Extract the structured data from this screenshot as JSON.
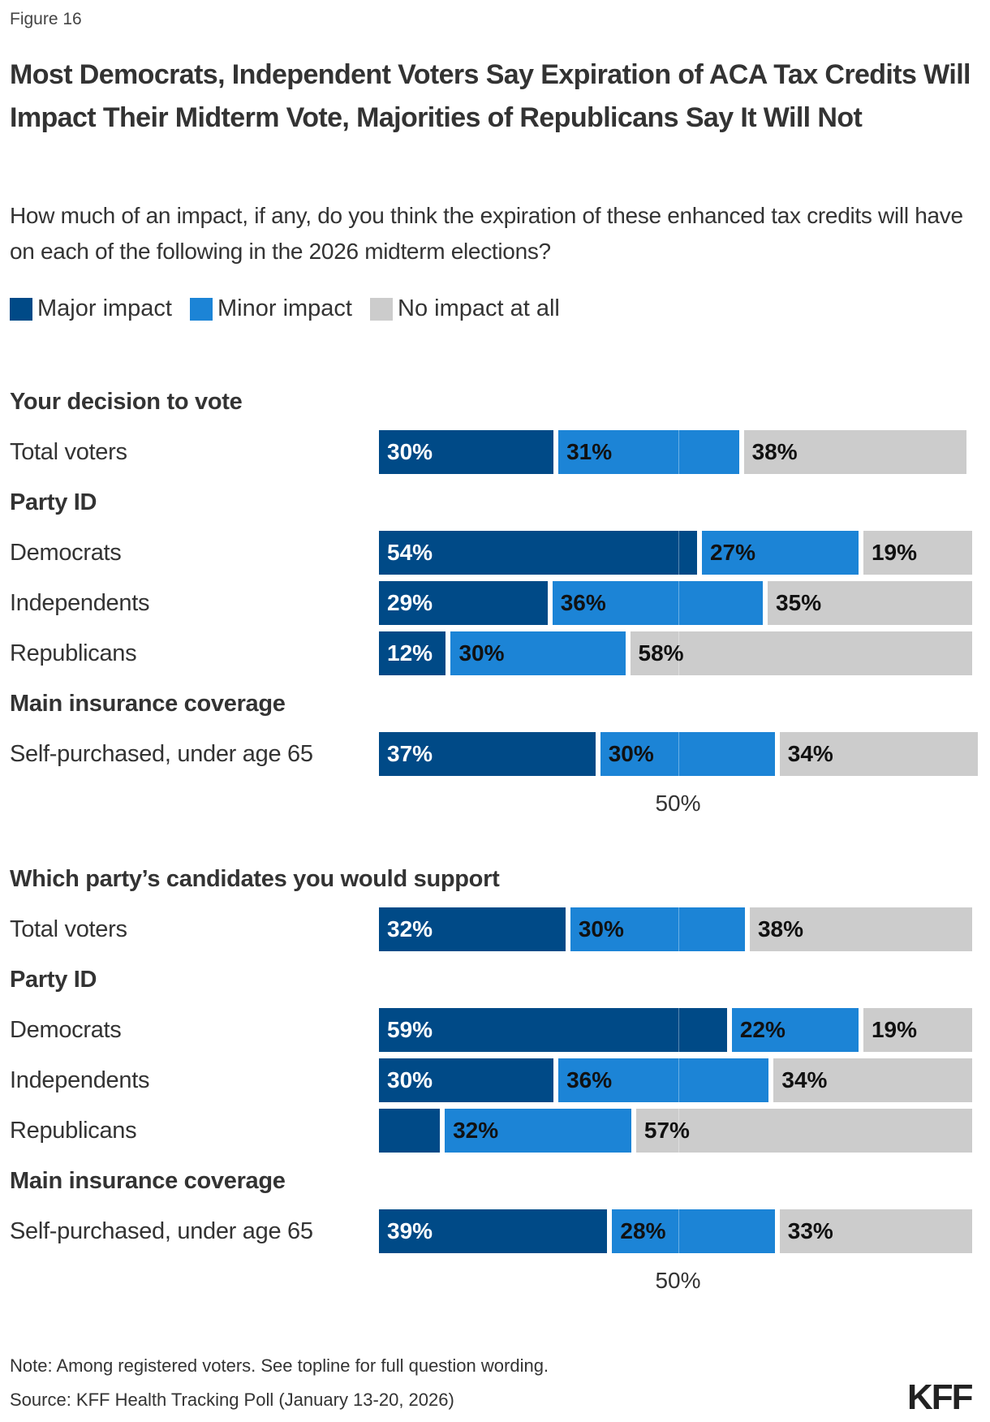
{
  "figure_label": "Figure 16",
  "title": "Most Democrats, Independent Voters Say Expiration of ACA Tax Credits Will Impact Their Midterm Vote, Majorities of Republicans Say It Will Not",
  "subtitle": "How much of an impact, if any, do you think the expiration of these enhanced tax credits will have on each of the following in the 2026 midterm elections?",
  "note": "Note: Among registered voters. See topline for full question wording.",
  "source": "Source: KFF Health Tracking Poll (January 13-20, 2026)",
  "logo": "KFF",
  "chart_data": {
    "type": "bar",
    "orientation": "horizontal",
    "stacked": true,
    "legend": {
      "placement": "top-left",
      "entries": [
        "Major impact",
        "Minor impact",
        "No impact at all"
      ]
    },
    "colors": {
      "Major impact": "#004a87",
      "Minor impact": "#1c84d6",
      "No impact at all": "#cccccc"
    },
    "label_colors": {
      "Major impact": "#ffffff",
      "Minor impact": "#111111",
      "No impact at all": "#111111"
    },
    "xlim": [
      0,
      100
    ],
    "reference_line": 50,
    "reference_label": "50%",
    "panels": [
      {
        "title": "Your decision to vote",
        "rows": [
          {
            "label": "Total voters",
            "values": [
              30,
              31,
              38
            ],
            "labels": [
              "30%",
              "31%",
              "38%"
            ]
          },
          {
            "group": "Party ID"
          },
          {
            "label": "Democrats",
            "values": [
              54,
              27,
              19
            ],
            "labels": [
              "54%",
              "27%",
              "19%"
            ]
          },
          {
            "label": "Independents",
            "values": [
              29,
              36,
              35
            ],
            "labels": [
              "29%",
              "36%",
              "35%"
            ]
          },
          {
            "label": "Republicans",
            "values": [
              12,
              30,
              58
            ],
            "labels": [
              "12%",
              "30%",
              "58%"
            ]
          },
          {
            "group": "Main insurance coverage"
          },
          {
            "label": "Self-purchased, under age 65",
            "values": [
              37,
              30,
              34
            ],
            "labels": [
              "37%",
              "30%",
              "34%"
            ]
          }
        ]
      },
      {
        "title": "Which party’s candidates you would support",
        "rows": [
          {
            "label": "Total voters",
            "values": [
              32,
              30,
              38
            ],
            "labels": [
              "32%",
              "30%",
              "38%"
            ]
          },
          {
            "group": "Party ID"
          },
          {
            "label": "Democrats",
            "values": [
              59,
              22,
              19
            ],
            "labels": [
              "59%",
              "22%",
              "19%"
            ]
          },
          {
            "label": "Independents",
            "values": [
              30,
              36,
              34
            ],
            "labels": [
              "30%",
              "36%",
              "34%"
            ]
          },
          {
            "label": "Republicans",
            "values": [
              11,
              32,
              57
            ],
            "labels": [
              "",
              "32%",
              "57%"
            ]
          },
          {
            "group": "Main insurance coverage"
          },
          {
            "label": "Self-purchased, under age 65",
            "values": [
              39,
              28,
              33
            ],
            "labels": [
              "39%",
              "28%",
              "33%"
            ]
          }
        ]
      }
    ]
  }
}
